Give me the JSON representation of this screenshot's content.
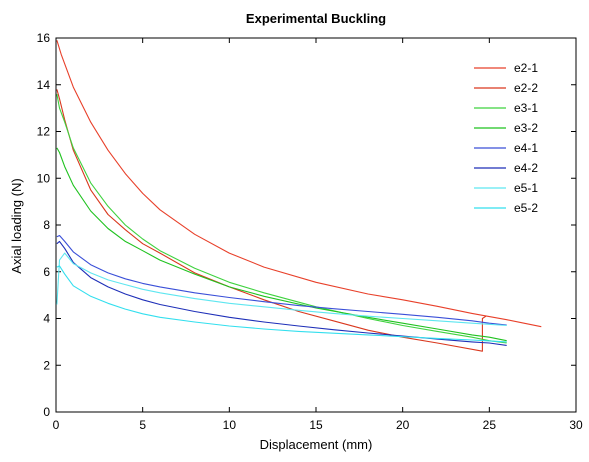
{
  "chart_data": {
    "type": "line",
    "title": "Experimental Buckling",
    "xlabel": "Displacement (mm)",
    "ylabel": "Axial loading (N)",
    "xlim": [
      0,
      30
    ],
    "ylim": [
      0,
      16
    ],
    "xticks": [
      0,
      5,
      10,
      15,
      20,
      25,
      30
    ],
    "yticks": [
      0,
      2,
      4,
      6,
      8,
      10,
      12,
      14,
      16
    ],
    "grid": false,
    "legend_position": "top-right",
    "series": [
      {
        "name": "e2-1",
        "color": "#e8402a",
        "x": [
          0.05,
          0.3,
          0.6,
          1,
          2,
          3,
          4,
          5,
          6,
          8,
          10,
          12,
          15,
          18,
          20,
          22,
          24,
          25,
          26,
          27,
          28
        ],
        "y": [
          15.9,
          15.3,
          14.7,
          13.9,
          12.4,
          11.2,
          10.2,
          9.35,
          8.65,
          7.6,
          6.8,
          6.2,
          5.55,
          5.05,
          4.8,
          4.52,
          4.22,
          4.08,
          3.95,
          3.8,
          3.65
        ]
      },
      {
        "name": "e2-2",
        "color": "#d9381e",
        "x": [
          0.05,
          0.2,
          0.5,
          1,
          2,
          3,
          4,
          5,
          6,
          8,
          10,
          12,
          14,
          16,
          18,
          20,
          22,
          24.6,
          24.6,
          24.8
        ],
        "y": [
          13.8,
          13.4,
          12.5,
          11.2,
          9.5,
          8.45,
          7.8,
          7.2,
          6.8,
          5.95,
          5.35,
          4.8,
          4.3,
          3.9,
          3.5,
          3.2,
          2.95,
          2.6,
          4.0,
          4.1
        ]
      },
      {
        "name": "e3-1",
        "color": "#3fd23f",
        "x": [
          0.05,
          0.2,
          0.5,
          1,
          2,
          3,
          4,
          5,
          6,
          8,
          10,
          12,
          15,
          18,
          20,
          22,
          24,
          25,
          26
        ],
        "y": [
          13.6,
          13.0,
          12.4,
          11.3,
          9.8,
          8.8,
          8.0,
          7.4,
          6.9,
          6.15,
          5.55,
          5.1,
          4.5,
          4.0,
          3.7,
          3.45,
          3.2,
          3.05,
          2.95
        ]
      },
      {
        "name": "e3-2",
        "color": "#1fc21f",
        "x": [
          0.05,
          0.2,
          0.5,
          1,
          2,
          3,
          4,
          5,
          6,
          8,
          10,
          12,
          15,
          18,
          20,
          22,
          24,
          25,
          26
        ],
        "y": [
          11.3,
          11.1,
          10.5,
          9.7,
          8.6,
          7.85,
          7.3,
          6.9,
          6.5,
          5.9,
          5.35,
          4.95,
          4.45,
          4.05,
          3.8,
          3.55,
          3.3,
          3.2,
          3.05
        ]
      },
      {
        "name": "e4-1",
        "color": "#3a4fd8",
        "x": [
          0.05,
          0.2,
          0.5,
          1,
          2,
          3,
          4,
          5,
          6,
          8,
          10,
          12,
          14,
          16,
          18,
          20,
          22,
          24,
          25,
          26
        ],
        "y": [
          7.5,
          7.55,
          7.3,
          6.85,
          6.3,
          5.95,
          5.7,
          5.5,
          5.35,
          5.1,
          4.9,
          4.72,
          4.55,
          4.42,
          4.3,
          4.18,
          4.05,
          3.9,
          3.8,
          3.72
        ]
      },
      {
        "name": "e4-2",
        "color": "#1e2fb8",
        "x": [
          0.05,
          0.2,
          0.5,
          1,
          2,
          3,
          4,
          5,
          6,
          8,
          10,
          12,
          14,
          16,
          18,
          20,
          22,
          24,
          25,
          26
        ],
        "y": [
          7.2,
          7.3,
          7.0,
          6.4,
          5.75,
          5.35,
          5.05,
          4.8,
          4.6,
          4.3,
          4.05,
          3.85,
          3.68,
          3.52,
          3.38,
          3.25,
          3.12,
          3.0,
          2.95,
          2.85
        ]
      },
      {
        "name": "e5-1",
        "color": "#5ee6f0",
        "x": [
          0.05,
          0.2,
          0.5,
          1,
          2,
          3,
          4,
          5,
          6,
          8,
          10,
          12,
          14,
          16,
          18,
          20,
          22,
          24,
          25,
          26
        ],
        "y": [
          4.6,
          6.5,
          6.8,
          6.35,
          5.95,
          5.65,
          5.45,
          5.25,
          5.1,
          4.85,
          4.65,
          4.5,
          4.35,
          4.22,
          4.1,
          4.0,
          3.9,
          3.8,
          3.75,
          3.7
        ]
      },
      {
        "name": "e5-2",
        "color": "#33dfee",
        "x": [
          0.05,
          0.2,
          0.5,
          1,
          2,
          3,
          4,
          5,
          6,
          8,
          10,
          12,
          14,
          16,
          18,
          20,
          22,
          24,
          25,
          26
        ],
        "y": [
          6.2,
          6.25,
          5.9,
          5.4,
          4.95,
          4.65,
          4.4,
          4.2,
          4.05,
          3.85,
          3.68,
          3.55,
          3.45,
          3.37,
          3.3,
          3.22,
          3.15,
          3.08,
          3.04,
          3.0
        ]
      }
    ]
  }
}
